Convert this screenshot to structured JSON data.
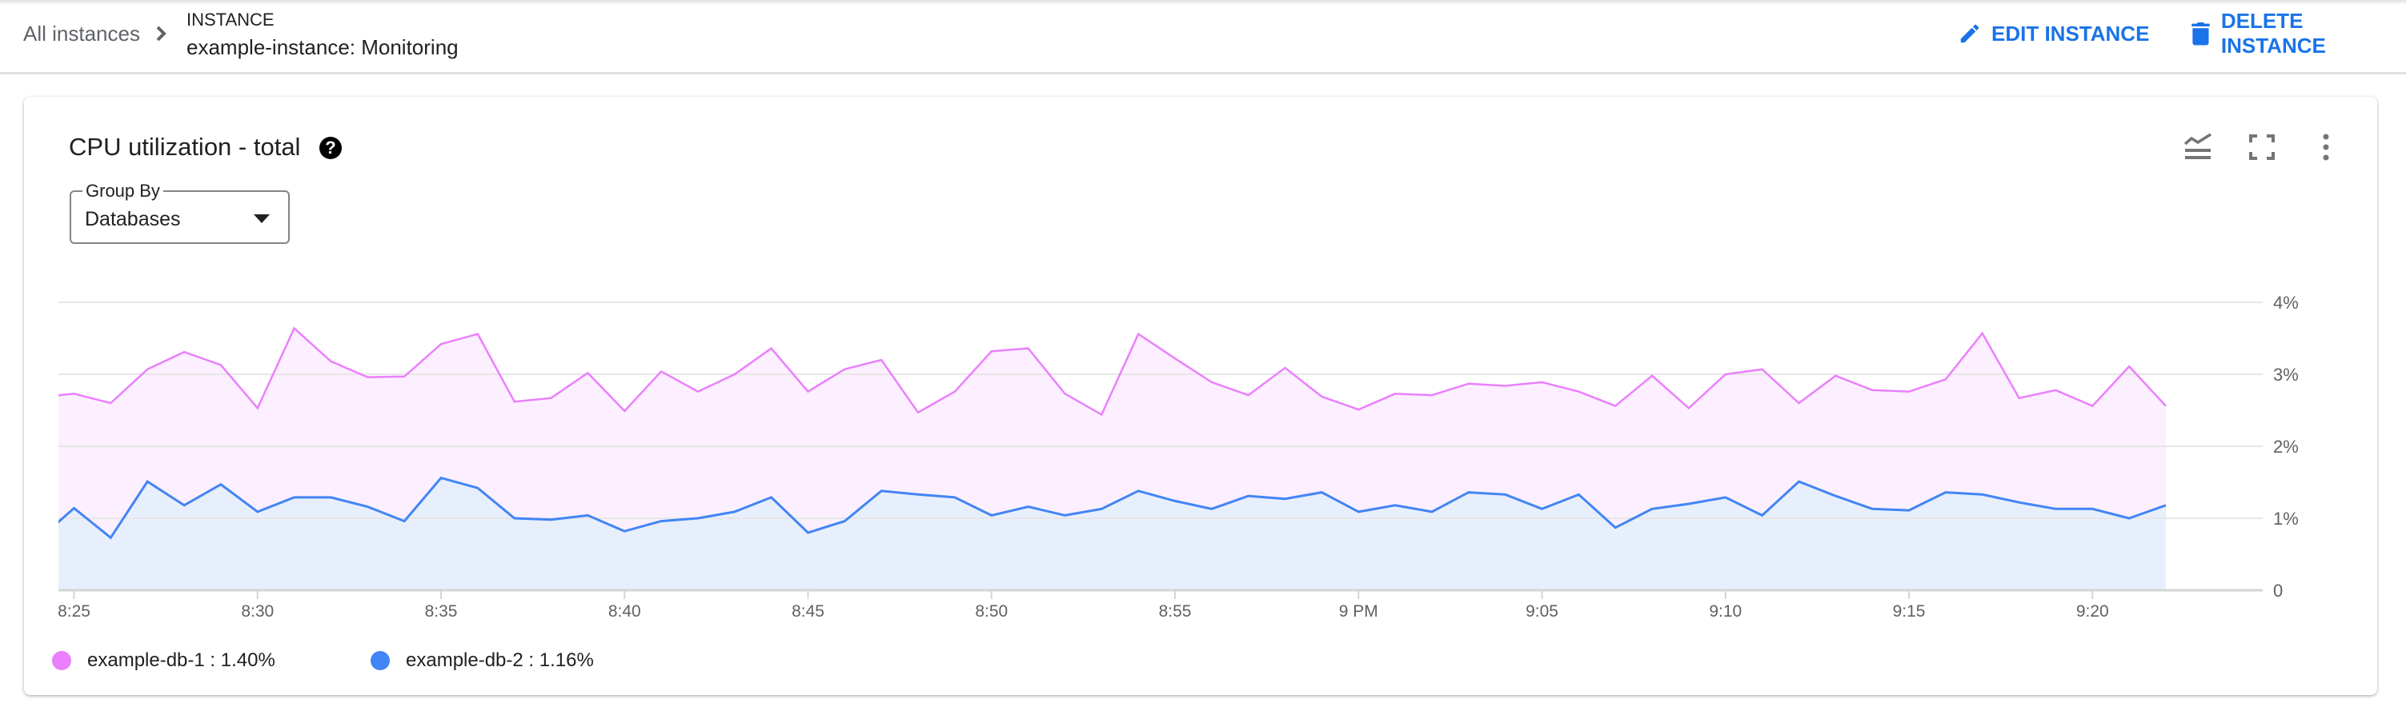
{
  "header": {
    "breadcrumb_root": "All instances",
    "resource_type": "INSTANCE",
    "resource_title": "example-instance: Monitoring",
    "edit_label": "EDIT INSTANCE",
    "delete_label": "DELETE INSTANCE",
    "accent_color": "#1a73e8"
  },
  "card": {
    "title": "CPU utilization - total",
    "help_icon": "help-circle-icon",
    "toolbar_icons": [
      "legend-toggle-icon",
      "fullscreen-icon",
      "more-vert-icon"
    ],
    "group_by": {
      "label": "Group By",
      "value": "Databases"
    }
  },
  "legend": [
    {
      "name": "example-db-1",
      "value": "1.40%",
      "color": "#ea80fc"
    },
    {
      "name": "example-db-2",
      "value": "1.16%",
      "color": "#4285f4"
    }
  ],
  "chart_data": {
    "type": "area",
    "title": "",
    "xlabel": "",
    "ylabel": "",
    "ylim": [
      0,
      4
    ],
    "y_ticks": [
      "0",
      "1%",
      "2%",
      "3%",
      "4%"
    ],
    "x_ticks": [
      "8:25",
      "8:30",
      "8:35",
      "8:40",
      "8:45",
      "8:50",
      "8:55",
      "9 PM",
      "9:05",
      "9:10",
      "9:15",
      "9:20"
    ],
    "grid": true,
    "y_axis_side": "right",
    "x": [
      "8:24",
      "8:25",
      "8:26",
      "8:27",
      "8:28",
      "8:29",
      "8:30",
      "8:31",
      "8:32",
      "8:33",
      "8:34",
      "8:35",
      "8:36",
      "8:37",
      "8:38",
      "8:39",
      "8:40",
      "8:41",
      "8:42",
      "8:43",
      "8:44",
      "8:45",
      "8:46",
      "8:47",
      "8:48",
      "8:49",
      "8:50",
      "8:51",
      "8:52",
      "8:53",
      "8:54",
      "8:55",
      "8:56",
      "8:57",
      "8:58",
      "8:59",
      "9:00",
      "9:01",
      "9:02",
      "9:03",
      "9:04",
      "9:05",
      "9:06",
      "9:07",
      "9:08",
      "9:09",
      "9:10",
      "9:11",
      "9:12",
      "9:13",
      "9:14",
      "9:15",
      "9:16",
      "9:17",
      "9:18",
      "9:19",
      "9:20",
      "9:21",
      "9:22"
    ],
    "series": [
      {
        "name": "example-db-1",
        "color": "#ea80fc",
        "fill": "#fcefff",
        "values": [
          2.68,
          2.73,
          2.6,
          3.07,
          3.31,
          3.13,
          2.53,
          3.64,
          3.18,
          2.96,
          2.97,
          3.42,
          3.56,
          2.62,
          2.67,
          3.02,
          2.49,
          3.04,
          2.76,
          3.0,
          3.36,
          2.76,
          3.07,
          3.2,
          2.47,
          2.76,
          3.32,
          3.36,
          2.73,
          2.44,
          3.56,
          3.22,
          2.89,
          2.71,
          3.09,
          2.69,
          2.51,
          2.73,
          2.71,
          2.87,
          2.84,
          2.89,
          2.76,
          2.56,
          2.98,
          2.53,
          3.0,
          3.07,
          2.6,
          2.98,
          2.78,
          2.76,
          2.93,
          3.57,
          2.67,
          2.78,
          2.56,
          3.11,
          2.56
        ]
      },
      {
        "name": "example-db-2",
        "color": "#4285f4",
        "fill": "#e8effc",
        "values": [
          0.69,
          1.14,
          0.73,
          1.51,
          1.18,
          1.47,
          1.09,
          1.29,
          1.29,
          1.16,
          0.96,
          1.56,
          1.42,
          1.0,
          0.98,
          1.04,
          0.82,
          0.96,
          1.0,
          1.09,
          1.29,
          0.8,
          0.96,
          1.38,
          1.33,
          1.29,
          1.04,
          1.16,
          1.04,
          1.13,
          1.38,
          1.24,
          1.13,
          1.31,
          1.27,
          1.36,
          1.09,
          1.18,
          1.09,
          1.36,
          1.33,
          1.13,
          1.33,
          0.87,
          1.13,
          1.2,
          1.29,
          1.04,
          1.51,
          1.31,
          1.13,
          1.11,
          1.36,
          1.33,
          1.22,
          1.13,
          1.13,
          1.0,
          1.18
        ]
      }
    ]
  }
}
